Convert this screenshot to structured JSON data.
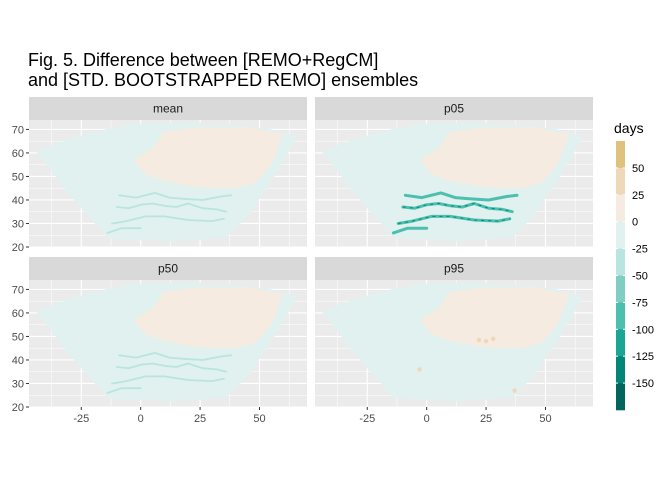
{
  "chart_data": {
    "type": "heatmap",
    "title_lines": [
      "Fig. 5. Difference between [REMO+RegCM]",
      "and [STD. BOOTSTRAPPED REMO] ensembles"
    ],
    "xlabel": "",
    "ylabel": "",
    "panels": [
      {
        "name": "mean",
        "dominant_values": {
          "north_east": 5,
          "west_and_south": -10,
          "mediterranean_coast": -35
        }
      },
      {
        "name": "p05",
        "dominant_values": {
          "north_east": 5,
          "west_and_south": -10,
          "mediterranean_coast": -90
        }
      },
      {
        "name": "p50",
        "dominant_values": {
          "north_east": 5,
          "west_and_south": -10,
          "mediterranean_coast": -35
        }
      },
      {
        "name": "p95",
        "dominant_values": {
          "north_east": 5,
          "west_and_south": -10,
          "hotspots": 40
        }
      }
    ],
    "x_ticks": [
      -25,
      0,
      25,
      50
    ],
    "y_ticks": [
      20,
      30,
      40,
      50,
      60,
      70
    ],
    "xlim": [
      -47,
      70
    ],
    "ylim": [
      20,
      74
    ],
    "grid": true,
    "legend": {
      "title": "days",
      "position": "right",
      "bins": [
        {
          "from": 50,
          "to": 75,
          "color": "#dfc27d"
        },
        {
          "from": 25,
          "to": 50,
          "color": "#eed8b8"
        },
        {
          "from": 0,
          "to": 25,
          "color": "#f5ebe0"
        },
        {
          "from": -25,
          "to": 0,
          "color": "#e0f1ef"
        },
        {
          "from": -50,
          "to": -25,
          "color": "#b9e4df"
        },
        {
          "from": -75,
          "to": -50,
          "color": "#80cdc1"
        },
        {
          "from": -100,
          "to": -75,
          "color": "#4dbfae"
        },
        {
          "from": -125,
          "to": -100,
          "color": "#1aa595"
        },
        {
          "from": -150,
          "to": -125,
          "color": "#01877a"
        },
        {
          "from": -175,
          "to": -150,
          "color": "#01665e"
        }
      ],
      "labels": [
        50,
        25,
        0,
        -25,
        -50,
        -75,
        -100,
        -125,
        -150
      ]
    },
    "colors": {
      "panel_background": "#ebebeb",
      "grid_line": "#ffffff",
      "strip_background": "#d9d9d9"
    }
  }
}
